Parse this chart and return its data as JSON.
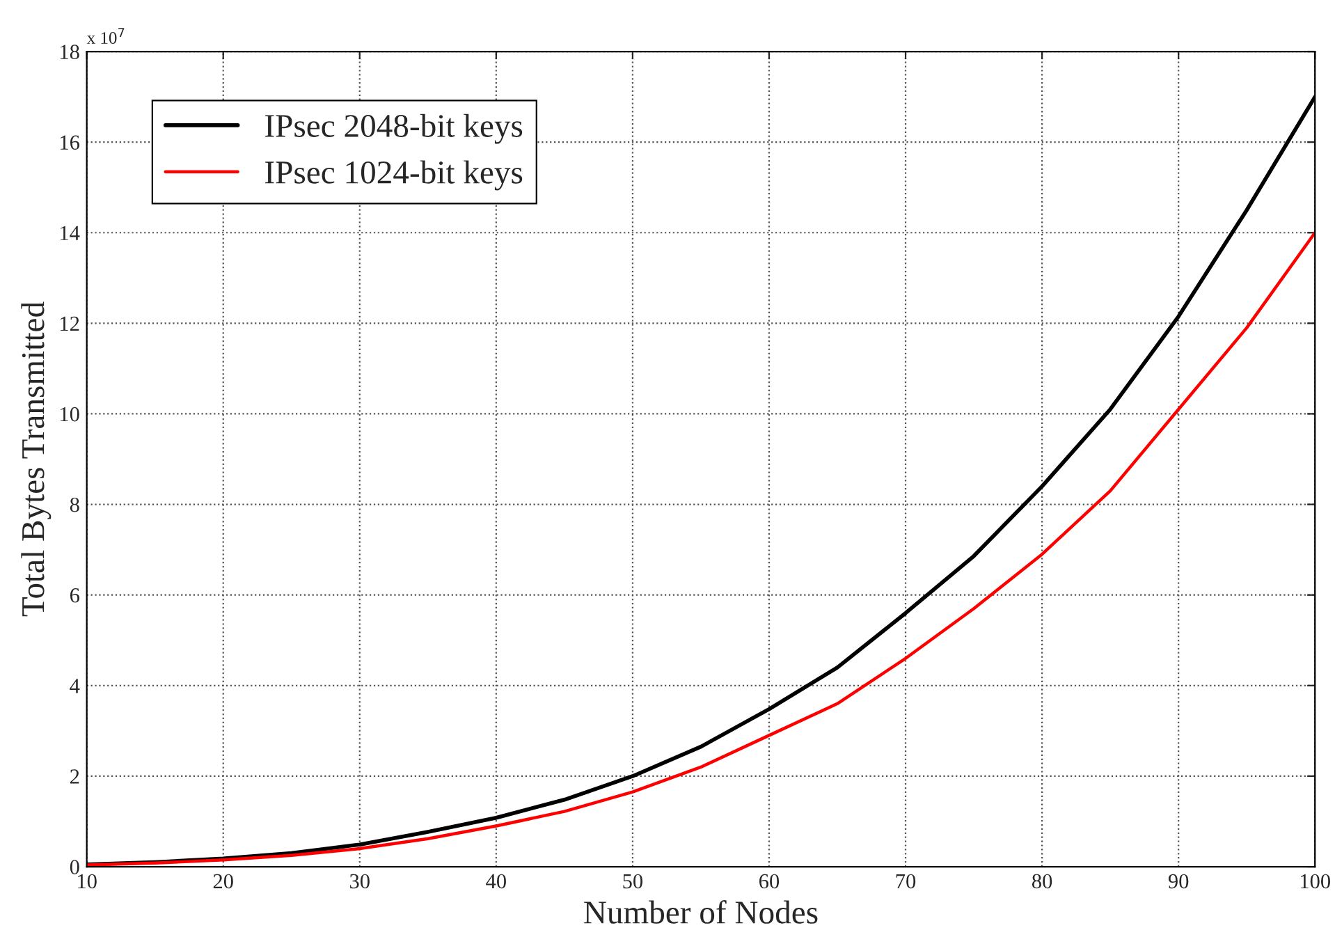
{
  "chart_data": {
    "type": "line",
    "xlabel": "Number of Nodes",
    "ylabel": "Total Bytes Transmitted",
    "annotations": [
      "x 10$^{7}$"
    ],
    "x": [
      10,
      15,
      20,
      25,
      30,
      35,
      40,
      45,
      50,
      55,
      60,
      65,
      70,
      75,
      80,
      85,
      90,
      95,
      100
    ],
    "series": [
      {
        "name": "IPsec 2048-bit keys",
        "color": "#000000",
        "values": [
          0.05,
          0.1,
          0.18,
          0.3,
          0.49,
          0.77,
          1.08,
          1.48,
          2.0,
          2.65,
          3.48,
          4.4,
          5.6,
          6.86,
          8.4,
          10.1,
          12.15,
          14.5,
          17.0
        ]
      },
      {
        "name": "IPsec 1024-bit keys",
        "color": "#ff0000",
        "values": [
          0.04,
          0.08,
          0.15,
          0.25,
          0.4,
          0.62,
          0.9,
          1.22,
          1.65,
          2.2,
          2.9,
          3.6,
          4.6,
          5.7,
          6.9,
          8.3,
          10.1,
          11.9,
          14.0
        ]
      }
    ],
    "xlim": [
      10,
      100
    ],
    "xticks": [
      10,
      20,
      30,
      40,
      50,
      60,
      70,
      80,
      90,
      100
    ],
    "ylim": [
      0,
      18
    ],
    "yticks": [
      0,
      2,
      4,
      6,
      8,
      10,
      12,
      14,
      16,
      18
    ],
    "grid": true,
    "legend": "top left",
    "marker": "none",
    "line_style": "solid"
  }
}
